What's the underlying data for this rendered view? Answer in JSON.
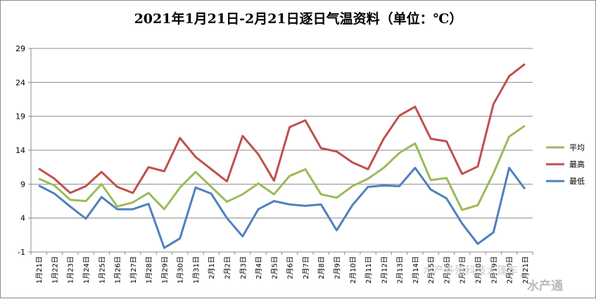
{
  "chart_data": {
    "type": "line",
    "title": "2021年1月21日-2月21日逐日气温资料（单位：℃）",
    "categories": [
      "1月21日",
      "1月22日",
      "1月23日",
      "1月24日",
      "1月25日",
      "1月26日",
      "1月27日",
      "1月28日",
      "1月29日",
      "1月30日",
      "1月31日",
      "2月1日",
      "2月2日",
      "2月3日",
      "2月4日",
      "2月5日",
      "2月6日",
      "2月7日",
      "2月8日",
      "2月9日",
      "2月10日",
      "2月11日",
      "2月12日",
      "2月13日",
      "2月14日",
      "2月15日",
      "2月16日",
      "2月17日",
      "2月18日",
      "2月19日",
      "2月20日",
      "2月21日"
    ],
    "series": [
      {
        "name": "平均",
        "color": "#9bbb59",
        "values": [
          9.8,
          8.8,
          6.7,
          6.5,
          9.0,
          5.7,
          6.3,
          7.7,
          5.3,
          8.5,
          10.8,
          8.6,
          6.4,
          7.5,
          9.1,
          7.5,
          10.2,
          11.2,
          7.5,
          7.0,
          8.7,
          9.8,
          11.4,
          13.6,
          15.0,
          9.6,
          9.9,
          5.2,
          5.9,
          10.6,
          16.0,
          17.6
        ]
      },
      {
        "name": "最高",
        "color": "#c0504d",
        "values": [
          11.3,
          9.8,
          7.7,
          8.7,
          10.8,
          8.6,
          7.7,
          11.5,
          10.9,
          15.8,
          13.0,
          11.2,
          9.4,
          16.1,
          13.4,
          9.5,
          17.4,
          18.4,
          14.3,
          13.8,
          12.2,
          11.2,
          15.7,
          19.1,
          20.4,
          15.7,
          15.3,
          10.5,
          11.6,
          20.8,
          24.9,
          26.7
        ]
      },
      {
        "name": "最低",
        "color": "#4f81bd",
        "values": [
          8.8,
          7.6,
          5.7,
          3.9,
          7.1,
          5.3,
          5.3,
          6.1,
          -0.4,
          1.0,
          8.5,
          7.6,
          4.0,
          1.3,
          5.3,
          6.5,
          6.0,
          5.8,
          6.0,
          2.2,
          5.9,
          8.6,
          8.8,
          8.7,
          11.4,
          8.2,
          6.9,
          3.2,
          0.2,
          1.9,
          11.4,
          8.3
        ]
      }
    ],
    "y_ticks": [
      -1,
      4,
      9,
      14,
      19,
      24,
      29
    ],
    "ylim": [
      -1,
      29
    ],
    "legend_position": "right",
    "grid": "horizontal"
  },
  "watermark": {
    "line1": "水产养殖科技大篷车",
    "line2": "水产通"
  }
}
